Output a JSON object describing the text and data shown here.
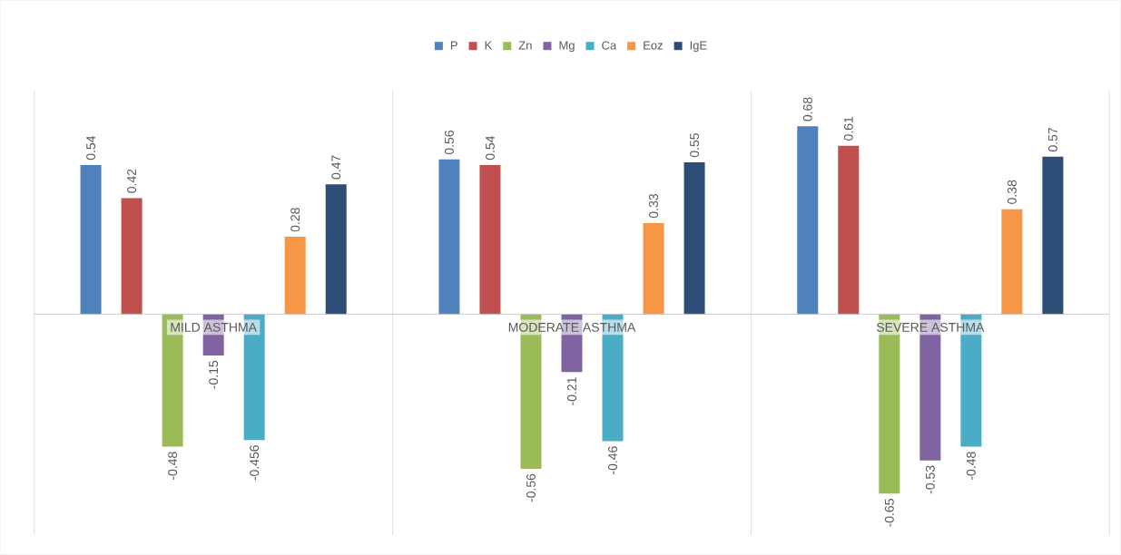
{
  "chart_data": {
    "type": "bar",
    "categories": [
      "MILD ASTHMA",
      "MODERATE ASTHMA",
      "SEVERE ASTHMA"
    ],
    "series": [
      {
        "name": "P",
        "color": "#4f81bd",
        "values": [
          0.54,
          0.56,
          0.68
        ]
      },
      {
        "name": "K",
        "color": "#c0504d",
        "values": [
          0.42,
          0.54,
          0.61
        ]
      },
      {
        "name": "Zn",
        "color": "#9bbb59",
        "values": [
          -0.48,
          -0.56,
          -0.65
        ]
      },
      {
        "name": "Mg",
        "color": "#8064a2",
        "values": [
          -0.15,
          -0.21,
          -0.53
        ]
      },
      {
        "name": "Ca",
        "color": "#4bacc6",
        "values": [
          -0.456,
          -0.46,
          -0.48
        ]
      },
      {
        "name": "Eoz",
        "color": "#f79646",
        "values": [
          0.28,
          0.33,
          0.38
        ]
      },
      {
        "name": "IgE",
        "color": "#2c4d75",
        "values": [
          0.47,
          0.55,
          0.57
        ]
      }
    ],
    "ylim": [
      -0.8,
      0.81
    ],
    "data_labels": true,
    "grid": "x",
    "legend": "top"
  }
}
